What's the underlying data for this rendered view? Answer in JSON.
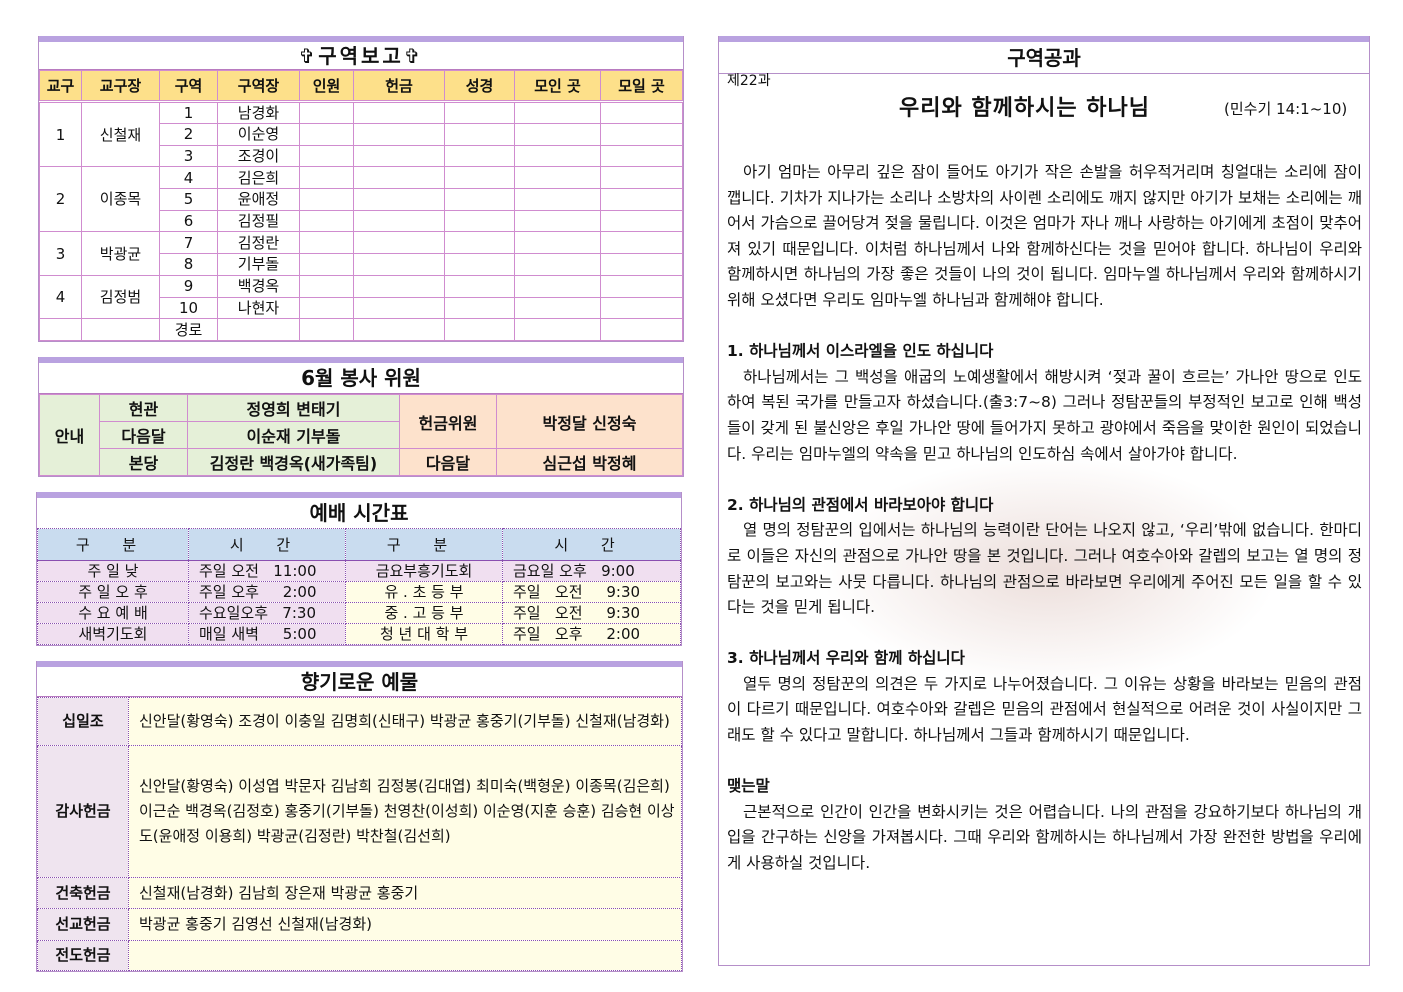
{
  "district_report": {
    "title": "✞구역보고✞",
    "headers": [
      "교구",
      "교구장",
      "구역",
      "구역장",
      "인원",
      "헌금",
      "성경",
      "모인 곳",
      "모일 곳"
    ],
    "parishes": [
      {
        "no": "1",
        "leader": "신철재",
        "groups": [
          {
            "no": "1",
            "leader": "남경화"
          },
          {
            "no": "2",
            "leader": "이순영"
          },
          {
            "no": "3",
            "leader": "조경이"
          }
        ]
      },
      {
        "no": "2",
        "leader": "이종목",
        "groups": [
          {
            "no": "4",
            "leader": "김은희"
          },
          {
            "no": "5",
            "leader": "윤애정"
          },
          {
            "no": "6",
            "leader": "김정필"
          }
        ]
      },
      {
        "no": "3",
        "leader": "박광균",
        "groups": [
          {
            "no": "7",
            "leader": "김정란"
          },
          {
            "no": "8",
            "leader": "기부돌"
          }
        ]
      },
      {
        "no": "4",
        "leader": "김정범",
        "groups": [
          {
            "no": "9",
            "leader": "백경옥"
          },
          {
            "no": "10",
            "leader": "나현자"
          }
        ]
      },
      {
        "no": "",
        "leader": "",
        "groups": [
          {
            "no": "경로",
            "leader": ""
          }
        ]
      }
    ]
  },
  "volunteers": {
    "title": "6월 봉사 위원",
    "guide_label": "안내",
    "rows": [
      {
        "label": "현관",
        "names": "정영희 변태기"
      },
      {
        "label": "다음달",
        "names": "이순재 기부돌"
      },
      {
        "label": "본당",
        "names": "김정란 백경옥(새가족팀)"
      }
    ],
    "offering_label": "헌금위원",
    "offering_names": "박정달 신정숙",
    "next_label": "다음달",
    "next_names": "심근섭 박정혜"
  },
  "schedule": {
    "title": "예배 시간표",
    "headers": [
      "구 분",
      "시 간",
      "구 분",
      "시 간"
    ],
    "rows": [
      [
        "주  일  낮",
        "주일 오전   11:00",
        "금요부흥기도회",
        "금요일 오후   9:00"
      ],
      [
        "주 일 오 후",
        "주일 오후     2:00",
        "유 . 초 등 부",
        "주일   오전     9:30"
      ],
      [
        "수 요 예 배",
        "수요일오후   7:30",
        "중 . 고 등 부",
        "주일   오전     9:30"
      ],
      [
        "새벽기도회",
        "매일 새벽     5:00",
        "청 년 대 학 부",
        "주일   오후     2:00"
      ]
    ]
  },
  "offerings": {
    "title": "향기로운 예물",
    "rows": [
      {
        "label": "십일조",
        "names": "신안달(황영숙) 조경이 이충일 김명희(신태구) 박광균 홍중기(기부돌) 신철재(남경화)"
      },
      {
        "label": "감사헌금",
        "names": "신안달(황영숙) 이성엽 박문자 김남희 김정봉(김대엽) 최미숙(백형운) 이종목(김은희) 이근순 백경옥(김정호) 홍중기(기부돌) 천영찬(이성희) 이순영(지훈 승훈) 김승현 이상도(윤애정 이용희) 박광균(김정란) 박찬철(김선희)"
      },
      {
        "label": "건축헌금",
        "names": "신철재(남경화) 김남희 장은재 박광균 홍중기"
      },
      {
        "label": "선교헌금",
        "names": "박광균 홍중기 김영선 신철재(남경화)"
      },
      {
        "label": "전도헌금",
        "names": ""
      }
    ]
  },
  "lesson": {
    "header": "구역공과",
    "number": "제22과",
    "title": "우리와 함께하시는 하나님",
    "scripture": "(민수기 14:1~10)",
    "intro": "아기 엄마는 아무리 깊은 잠이 들어도 아기가 작은 손발을 허우적거리며 칭얼대는 소리에 잠이 깹니다. 기차가 지나가는 소리나 소방차의 사이렌 소리에도 깨지 않지만 아기가 보채는 소리에는 깨어서 가슴으로 끌어당겨 젖을 물립니다. 이것은 엄마가 자나 깨나 사랑하는 아기에게 초점이 맞추어져 있기 때문입니다. 이처럼 하나님께서 나와 함께하신다는 것을 믿어야 합니다. 하나님이 우리와 함께하시면 하나님의 가장 좋은 것들이 나의 것이 됩니다. 임마누엘 하나님께서 우리와 함께하시기 위해 오셨다면 우리도 임마누엘 하나님과 함께해야 합니다.",
    "sections": [
      {
        "heading": "1. 하나님께서 이스라엘을 인도 하십니다",
        "text": "하나님께서는 그 백성을 애굽의 노예생활에서 해방시켜 ‘젖과 꿀이 흐르는’ 가나안 땅으로 인도하여 복된 국가를 만들고자 하셨습니다.(출3:7~8) 그러나 정탐꾼들의 부정적인 보고로 인해 백성들이 갖게 된 불신앙은 후일 가나안 땅에 들어가지 못하고 광야에서 죽음을 맞이한 원인이 되었습니다. 우리는 임마누엘의 약속을 믿고 하나님의 인도하심 속에서 살아가야 합니다."
      },
      {
        "heading": "2. 하나님의 관점에서 바라보아야 합니다",
        "text": "열 명의 정탐꾼의 입에서는 하나님의 능력이란 단어는 나오지 않고, ‘우리’밖에 없습니다. 한마디로 이들은 자신의 관점으로 가나안 땅을 본 것입니다. 그러나 여호수아와 갈렙의 보고는 열 명의 정탐꾼의 보고와는 사뭇 다릅니다. 하나님의 관점으로 바라보면 우리에게 주어진 모든 일을 할 수 있다는 것을 믿게 됩니다."
      },
      {
        "heading": "3. 하나님께서 우리와 함께 하십니다",
        "text": "열두 명의 정탐꾼의 의견은 두 가지로 나누어졌습니다. 그 이유는 상황을 바라보는 믿음의 관점이 다르기 때문입니다. 여호수아와 갈렙은 믿음의 관점에서 현실적으로 어려운 것이 사실이지만 그래도 할 수 있다고 말합니다.  하나님께서 그들과 함께하시기 때문입니다."
      },
      {
        "heading": "맺는말",
        "text": "근본적으로 인간이 인간을 변화시키는 것은 어렵습니다. 나의 관점을 강요하기보다 하나님의 개입을 간구하는 신앙을 가져봅시다. 그때 우리와 함께하시는 하나님께서 가장 완전한 방법을 우리에게 사용하실 것입니다."
      }
    ]
  }
}
